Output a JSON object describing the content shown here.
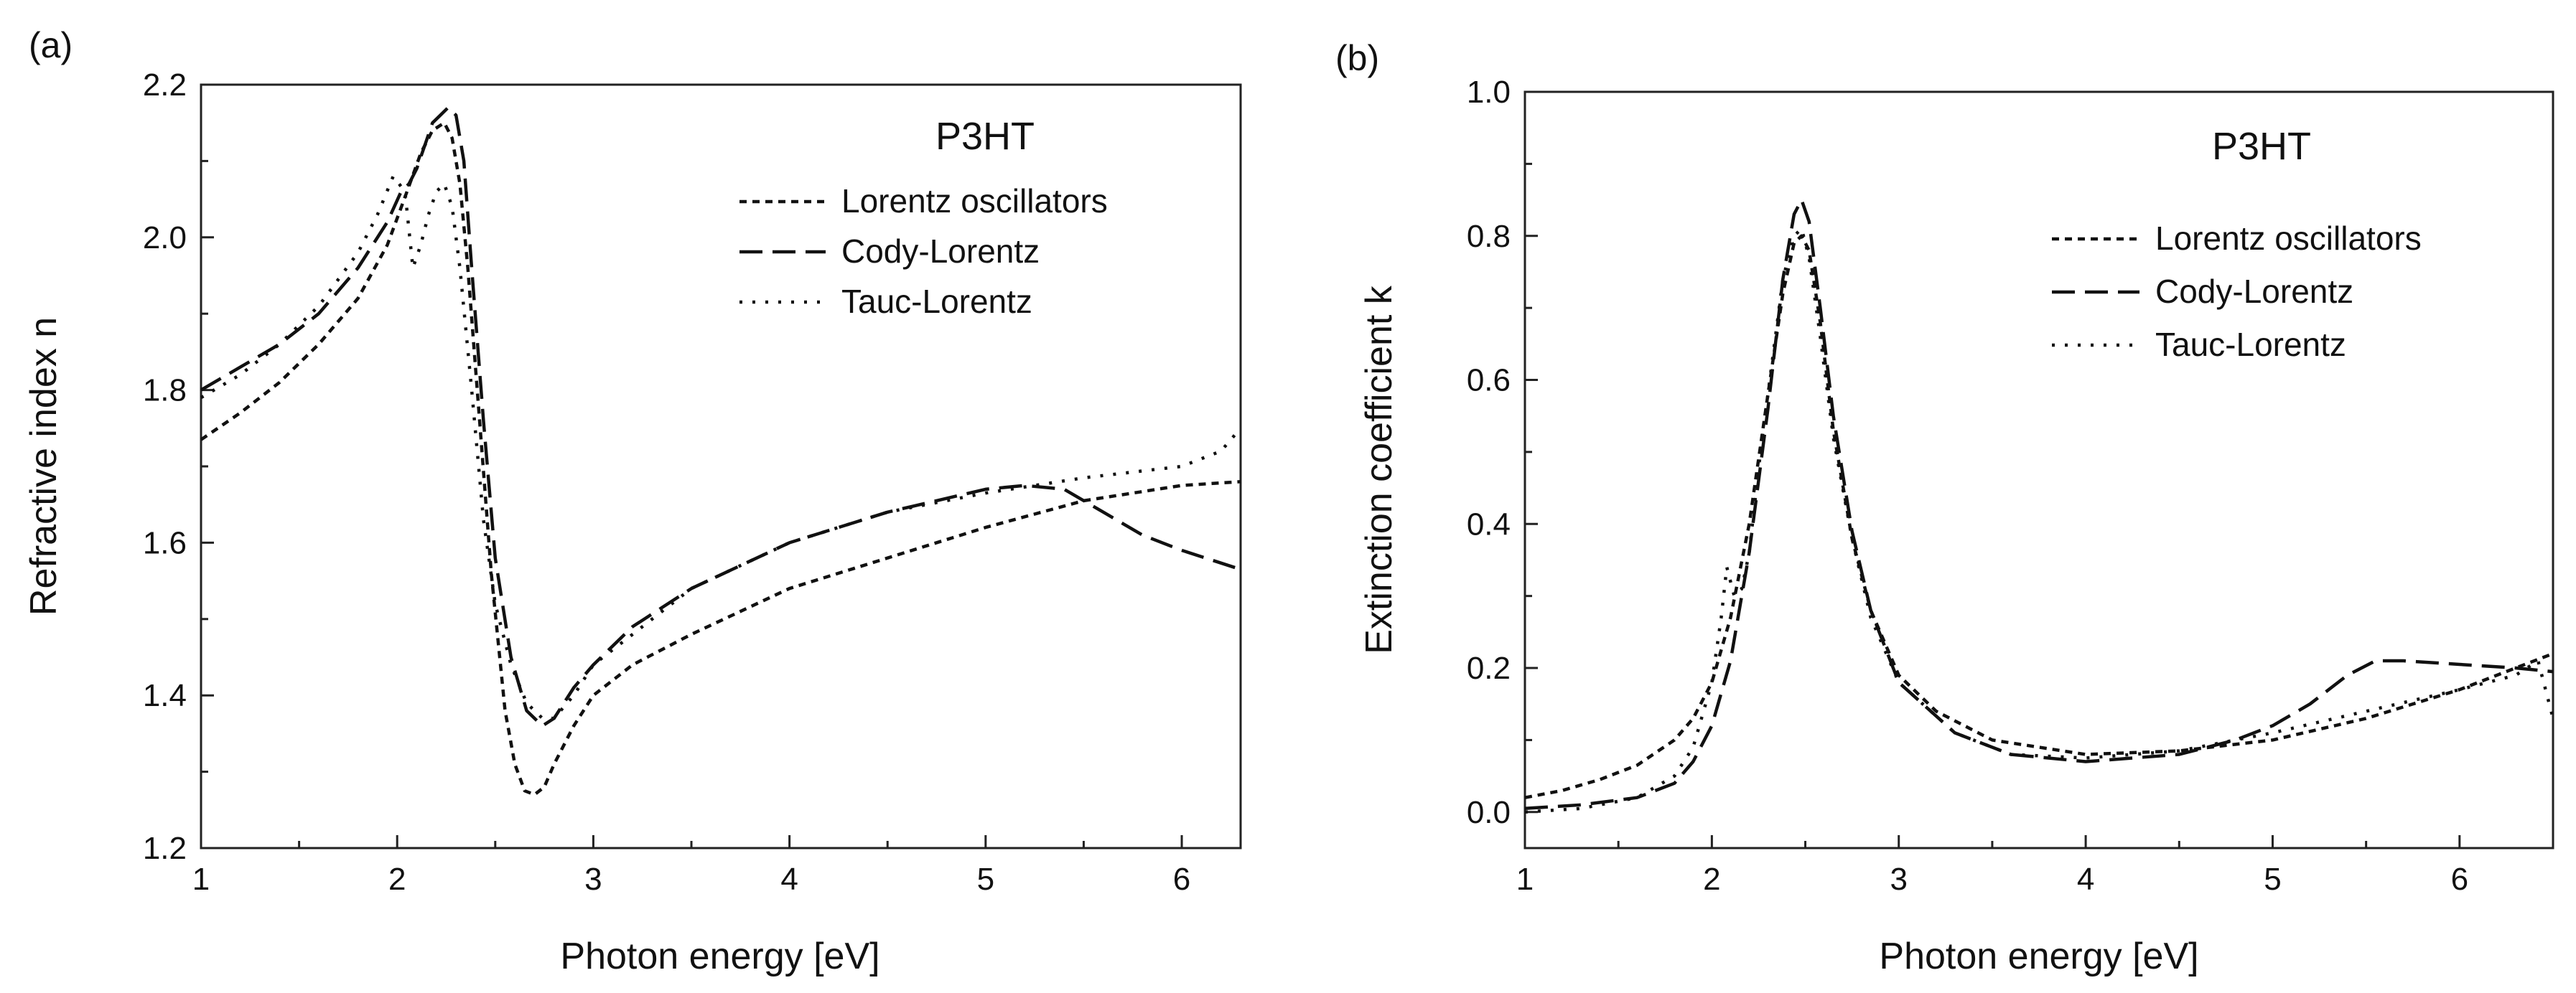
{
  "chart_data": [
    {
      "type": "line",
      "panel_label": "(a)",
      "title": "P3HT",
      "xlabel": "Photon energy [eV]",
      "ylabel": "Refractive index n",
      "xlim": [
        1,
        6.3
      ],
      "ylim": [
        1.2,
        2.2
      ],
      "xticks": [
        "1",
        "2",
        "3",
        "4",
        "5",
        "6"
      ],
      "yticks": [
        "1.2",
        "1.4",
        "1.6",
        "1.8",
        "2.0",
        "2.2"
      ],
      "legend": [
        "Lorentz oscillators",
        "Cody-Lorentz",
        "Tauc-Lorentz"
      ],
      "legend_position": "top-right",
      "series": [
        {
          "name": "Lorentz oscillators",
          "x": [
            1.0,
            1.2,
            1.4,
            1.6,
            1.8,
            1.95,
            2.05,
            2.12,
            2.18,
            2.24,
            2.28,
            2.32,
            2.36,
            2.42,
            2.48,
            2.55,
            2.6,
            2.65,
            2.7,
            2.75,
            2.8,
            2.9,
            3.0,
            3.2,
            3.5,
            4.0,
            4.5,
            5.0,
            5.5,
            6.0,
            6.3
          ],
          "y": [
            1.735,
            1.77,
            1.81,
            1.86,
            1.92,
            1.99,
            2.06,
            2.11,
            2.14,
            2.15,
            2.13,
            2.07,
            1.96,
            1.76,
            1.56,
            1.38,
            1.31,
            1.275,
            1.27,
            1.28,
            1.31,
            1.36,
            1.4,
            1.44,
            1.48,
            1.54,
            1.58,
            1.62,
            1.655,
            1.675,
            1.68
          ]
        },
        {
          "name": "Cody-Lorentz",
          "x": [
            1.0,
            1.2,
            1.4,
            1.6,
            1.8,
            1.95,
            2.02,
            2.06,
            2.1,
            2.14,
            2.18,
            2.22,
            2.26,
            2.3,
            2.34,
            2.38,
            2.44,
            2.5,
            2.58,
            2.66,
            2.74,
            2.8,
            2.9,
            3.0,
            3.2,
            3.5,
            4.0,
            4.5,
            5.0,
            5.2,
            5.4,
            5.6,
            5.8,
            6.0,
            6.3
          ],
          "y": [
            1.8,
            1.83,
            1.86,
            1.9,
            1.96,
            2.02,
            2.06,
            2.07,
            2.09,
            2.12,
            2.15,
            2.16,
            2.17,
            2.16,
            2.1,
            1.96,
            1.76,
            1.58,
            1.45,
            1.38,
            1.36,
            1.37,
            1.41,
            1.44,
            1.49,
            1.54,
            1.6,
            1.64,
            1.67,
            1.675,
            1.67,
            1.64,
            1.61,
            1.59,
            1.565
          ]
        },
        {
          "name": "Tauc-Lorentz",
          "x": [
            1.0,
            1.2,
            1.4,
            1.6,
            1.8,
            1.9,
            1.98,
            2.04,
            2.08,
            2.12,
            2.16,
            2.2,
            2.24,
            2.28,
            2.32,
            2.38,
            2.44,
            2.5,
            2.58,
            2.66,
            2.74,
            2.8,
            2.9,
            3.0,
            3.2,
            3.5,
            4.0,
            4.5,
            5.0,
            5.5,
            6.0,
            6.2,
            6.3
          ],
          "y": [
            1.79,
            1.82,
            1.86,
            1.91,
            1.98,
            2.03,
            2.08,
            2.06,
            1.96,
            1.99,
            2.03,
            2.06,
            2.07,
            2.04,
            1.96,
            1.8,
            1.63,
            1.52,
            1.44,
            1.39,
            1.37,
            1.37,
            1.4,
            1.44,
            1.48,
            1.54,
            1.6,
            1.64,
            1.665,
            1.685,
            1.7,
            1.72,
            1.75
          ]
        }
      ]
    },
    {
      "type": "line",
      "panel_label": "(b)",
      "title": "P3HT",
      "xlabel": "Photon energy [eV]",
      "ylabel": "Extinction coefficient k",
      "xlim": [
        1,
        6.5
      ],
      "ylim": [
        -0.05,
        1.0
      ],
      "xticks": [
        "1",
        "2",
        "3",
        "4",
        "5",
        "6"
      ],
      "yticks": [
        "0.0",
        "0.2",
        "0.4",
        "0.6",
        "0.8",
        "1.0"
      ],
      "legend": [
        "Lorentz oscillators",
        "Cody-Lorentz",
        "Tauc-Lorentz"
      ],
      "legend_position": "top-right",
      "series": [
        {
          "name": "Lorentz oscillators",
          "x": [
            1.0,
            1.2,
            1.4,
            1.6,
            1.8,
            1.9,
            2.0,
            2.1,
            2.2,
            2.3,
            2.38,
            2.44,
            2.48,
            2.52,
            2.58,
            2.65,
            2.75,
            2.85,
            3.0,
            3.2,
            3.5,
            4.0,
            4.5,
            5.0,
            5.5,
            6.0,
            6.3,
            6.5
          ],
          "y": [
            0.02,
            0.03,
            0.045,
            0.065,
            0.1,
            0.13,
            0.18,
            0.27,
            0.4,
            0.58,
            0.72,
            0.79,
            0.8,
            0.78,
            0.68,
            0.53,
            0.38,
            0.28,
            0.19,
            0.14,
            0.1,
            0.08,
            0.085,
            0.1,
            0.13,
            0.17,
            0.2,
            0.22
          ]
        },
        {
          "name": "Cody-Lorentz",
          "x": [
            1.0,
            1.3,
            1.6,
            1.8,
            1.9,
            2.0,
            2.1,
            2.2,
            2.3,
            2.38,
            2.44,
            2.48,
            2.52,
            2.58,
            2.65,
            2.75,
            2.85,
            3.0,
            3.3,
            3.6,
            4.0,
            4.5,
            4.8,
            5.0,
            5.2,
            5.4,
            5.55,
            5.7,
            6.0,
            6.3,
            6.5
          ],
          "y": [
            0.005,
            0.01,
            0.02,
            0.04,
            0.07,
            0.12,
            0.21,
            0.36,
            0.56,
            0.74,
            0.83,
            0.85,
            0.82,
            0.7,
            0.55,
            0.39,
            0.28,
            0.18,
            0.11,
            0.08,
            0.07,
            0.08,
            0.1,
            0.12,
            0.15,
            0.19,
            0.21,
            0.21,
            0.205,
            0.2,
            0.195
          ]
        },
        {
          "name": "Tauc-Lorentz",
          "x": [
            1.0,
            1.3,
            1.6,
            1.8,
            1.9,
            2.0,
            2.05,
            2.08,
            2.12,
            2.16,
            2.2,
            2.26,
            2.32,
            2.38,
            2.44,
            2.48,
            2.52,
            2.58,
            2.65,
            2.75,
            2.85,
            3.0,
            3.3,
            3.6,
            4.0,
            4.5,
            5.0,
            5.5,
            6.0,
            6.3,
            6.42,
            6.5
          ],
          "y": [
            0.0,
            0.005,
            0.02,
            0.05,
            0.09,
            0.18,
            0.27,
            0.34,
            0.3,
            0.31,
            0.36,
            0.5,
            0.62,
            0.74,
            0.8,
            0.81,
            0.77,
            0.66,
            0.52,
            0.38,
            0.27,
            0.18,
            0.11,
            0.08,
            0.075,
            0.085,
            0.11,
            0.14,
            0.17,
            0.19,
            0.21,
            0.13
          ]
        }
      ]
    }
  ]
}
